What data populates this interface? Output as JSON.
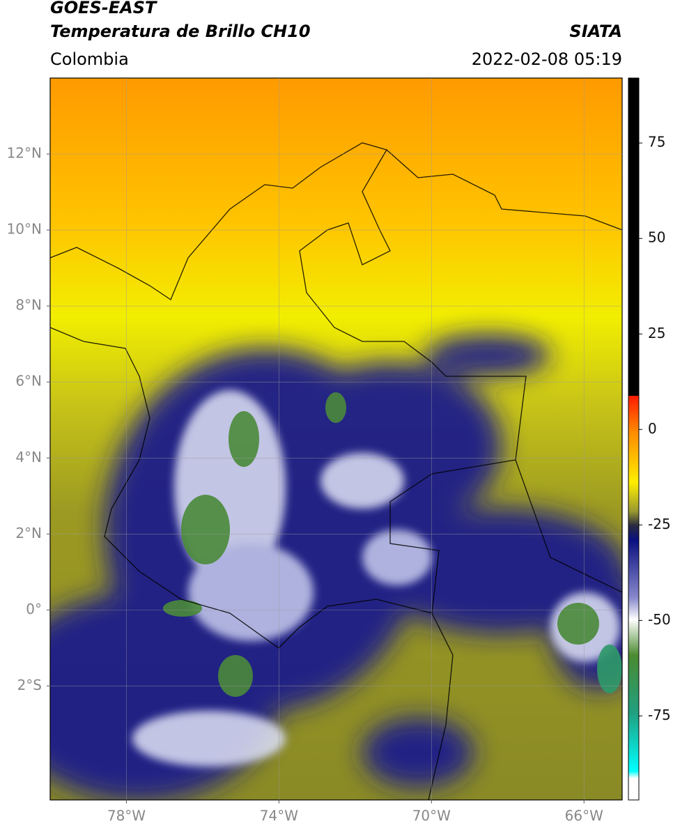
{
  "header": {
    "title": "GOES-EAST",
    "subtitle": "Temperatura de Brillo CH10",
    "source": "SIATA",
    "region": "Colombia",
    "datetime": "2022-02-08 05:19"
  },
  "map": {
    "xlim": [
      -80,
      -65
    ],
    "ylim": [
      -5,
      14
    ],
    "xticks": [
      {
        "value": -78,
        "label": "78°W"
      },
      {
        "value": -74,
        "label": "74°W"
      },
      {
        "value": -70,
        "label": "70°W"
      },
      {
        "value": -66,
        "label": "66°W"
      }
    ],
    "yticks": [
      {
        "value": 12,
        "label": "12°N"
      },
      {
        "value": 10,
        "label": "10°N"
      },
      {
        "value": 8,
        "label": "8°N"
      },
      {
        "value": 6,
        "label": "6°N"
      },
      {
        "value": 4,
        "label": "4°N"
      },
      {
        "value": 2,
        "label": "2°N"
      },
      {
        "value": 0,
        "label": "0°"
      },
      {
        "value": -2,
        "label": "2°S"
      }
    ],
    "grid": true
  },
  "colorbar": {
    "lim": [
      -97,
      92
    ],
    "ticks": [
      75,
      50,
      25,
      0,
      -25,
      -50,
      -75
    ]
  }
}
